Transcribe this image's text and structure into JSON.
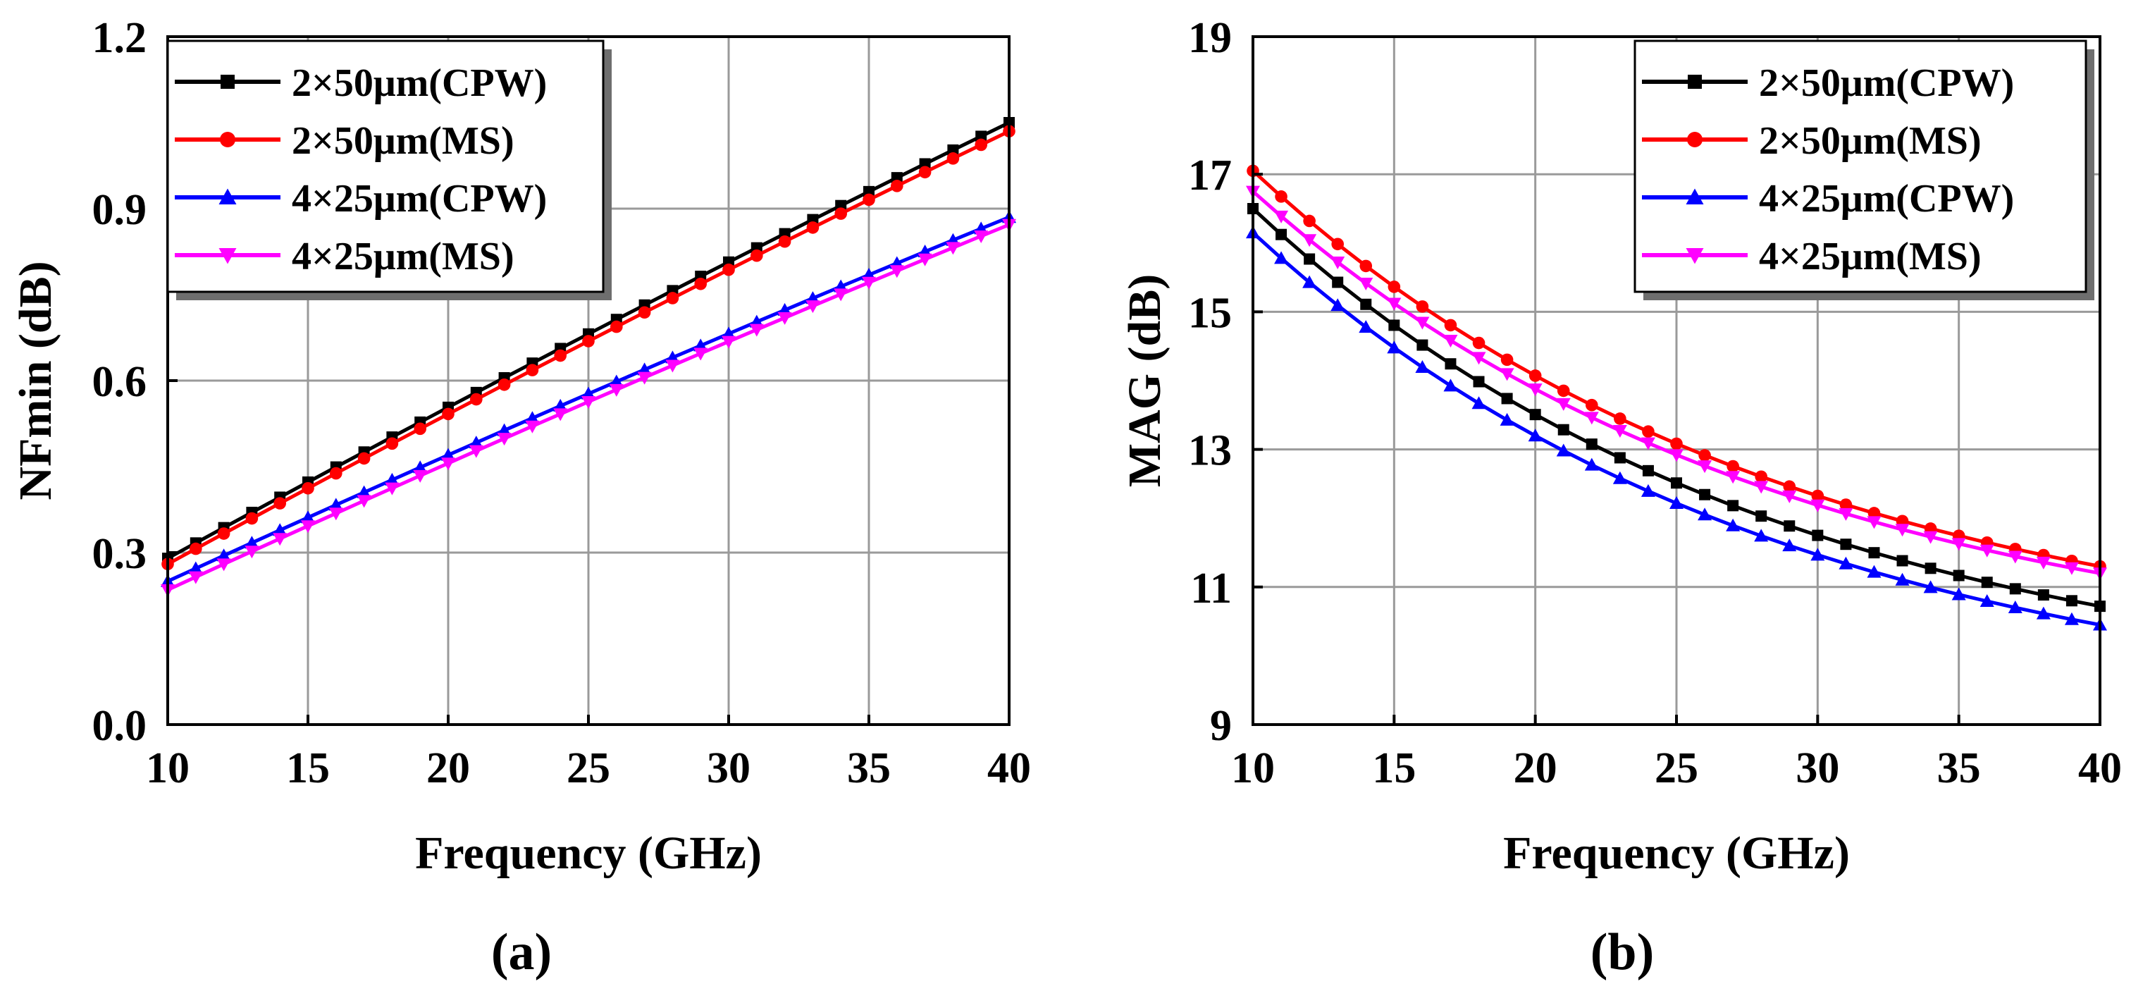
{
  "chart_data": [
    {
      "type": "line",
      "panel": "a",
      "caption": "(a)",
      "xlabel": "Frequency (GHz)",
      "ylabel": "NFmin (dB)",
      "xlim": [
        10,
        40
      ],
      "ylim": [
        0.0,
        1.2
      ],
      "xticks": [
        10,
        15,
        20,
        25,
        30,
        35,
        40
      ],
      "yticks": [
        0.0,
        0.3,
        0.6,
        0.9,
        1.2
      ],
      "ytick_labels": [
        "0.0",
        "0.3",
        "0.6",
        "0.9",
        "1.2"
      ],
      "grid": true,
      "legend_position": "top-left",
      "x": [
        10,
        11,
        12,
        13,
        14,
        15,
        16,
        17,
        18,
        19,
        20,
        21,
        22,
        23,
        24,
        25,
        26,
        27,
        28,
        29,
        30,
        31,
        32,
        33,
        34,
        35,
        36,
        37,
        38,
        39,
        40
      ],
      "series": [
        {
          "name": "2×50μm(CPW)",
          "color": "#000000",
          "marker": "square",
          "start": 0.29,
          "end": 1.05
        },
        {
          "name": "2×50μm(MS)",
          "color": "#ff0000",
          "marker": "circle",
          "start": 0.28,
          "end": 1.035
        },
        {
          "name": "4×25μm(CPW)",
          "color": "#0000ff",
          "marker": "triangle-up",
          "start": 0.25,
          "end": 0.885
        },
        {
          "name": "4×25μm(MS)",
          "color": "#ff00ff",
          "marker": "triangle-down",
          "start": 0.235,
          "end": 0.872
        }
      ]
    },
    {
      "type": "line",
      "panel": "b",
      "caption": "(b)",
      "xlabel": "Frequency (GHz)",
      "ylabel": "MAG (dB)",
      "xlim": [
        10,
        40
      ],
      "ylim": [
        9,
        19
      ],
      "xticks": [
        10,
        15,
        20,
        25,
        30,
        35,
        40
      ],
      "yticks": [
        9,
        11,
        13,
        15,
        17,
        19
      ],
      "ytick_labels": [
        "9",
        "11",
        "13",
        "15",
        "17",
        "19"
      ],
      "grid": true,
      "legend_position": "top-right",
      "x": [
        10,
        11,
        12,
        13,
        14,
        15,
        16,
        17,
        18,
        19,
        20,
        21,
        22,
        23,
        24,
        25,
        26,
        27,
        28,
        29,
        30,
        31,
        32,
        33,
        34,
        35,
        36,
        37,
        38,
        39,
        40
      ],
      "series": [
        {
          "name": "2×50μm(CPW)",
          "color": "#000000",
          "marker": "square",
          "start": 16.5,
          "end": 10.72
        },
        {
          "name": "2×50μm(MS)",
          "color": "#ff0000",
          "marker": "circle",
          "start": 17.05,
          "end": 11.3
        },
        {
          "name": "4×25μm(CPW)",
          "color": "#0000ff",
          "marker": "triangle-up",
          "start": 16.15,
          "end": 10.45
        },
        {
          "name": "4×25μm(MS)",
          "color": "#ff00ff",
          "marker": "triangle-down",
          "start": 16.75,
          "end": 11.2
        }
      ]
    }
  ]
}
